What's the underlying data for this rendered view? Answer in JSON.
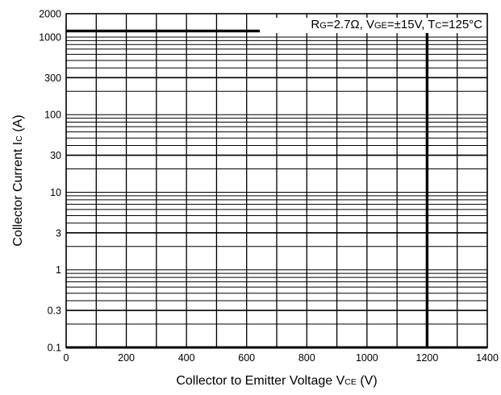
{
  "chart_data": {
    "type": "line",
    "title": "",
    "x_axis": {
      "label_main": "Collector to Emitter Voltage  V",
      "label_sub": "CE",
      "label_unit": "  (V)",
      "range": [
        0,
        1400
      ],
      "tick_values": [
        0,
        200,
        400,
        600,
        800,
        1000,
        1200,
        1400
      ],
      "tick_labels": [
        "0",
        "200",
        "400",
        "600",
        "800",
        "1000",
        "1200",
        "1400"
      ],
      "minor_step": 100,
      "scale": "linear"
    },
    "y_axis": {
      "label_main": "Collector Current  I",
      "label_sub": "C",
      "label_unit": " (A)",
      "range": [
        0.1,
        2000
      ],
      "scale": "log",
      "tick_values": [
        0.1,
        0.3,
        1,
        3,
        10,
        30,
        100,
        300,
        1000,
        2000
      ],
      "tick_labels": [
        "0.1",
        "0.3",
        "1",
        "3",
        "10",
        "30",
        "100",
        "300",
        "1000",
        "2000"
      ],
      "major_gridlines": [
        0.3,
        3,
        30,
        300
      ],
      "minor_gridline_multipliers": [
        1,
        2,
        3,
        4,
        5,
        6,
        7,
        8,
        9
      ]
    },
    "grid": true,
    "annotation": {
      "parts": [
        {
          "text": "R",
          "sub": false
        },
        {
          "text": "G",
          "sub": true
        },
        {
          "text": "=2.7Ω, V",
          "sub": false
        },
        {
          "text": "GE",
          "sub": true
        },
        {
          "text": "=±15V, T",
          "sub": false
        },
        {
          "text": "C",
          "sub": true
        },
        {
          "text": "=125°C",
          "sub": false
        }
      ],
      "placement": "top-right"
    },
    "series": [
      {
        "x": [
          0,
          1200,
          1200
        ],
        "y": [
          1200,
          1200,
          0.1
        ],
        "color": "#000000"
      }
    ]
  }
}
